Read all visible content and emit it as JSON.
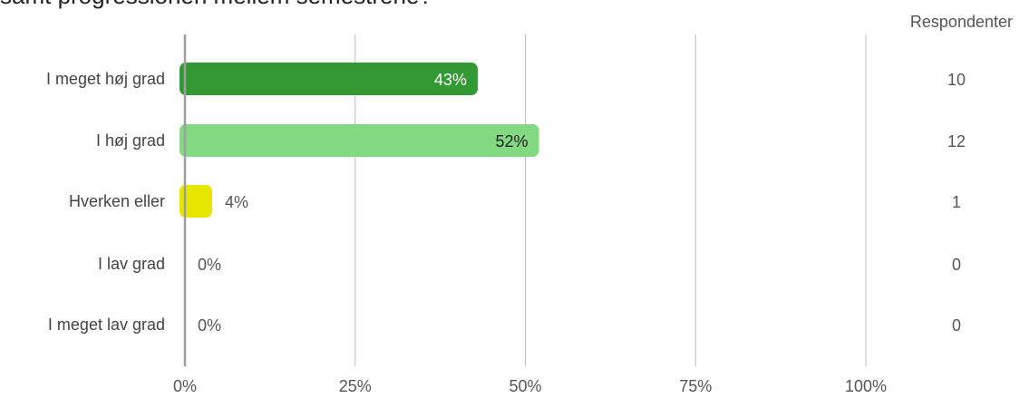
{
  "title": "samt progressionen mellem semestrene?",
  "respondents_header": "Respondenter",
  "chart_data": {
    "type": "bar",
    "orientation": "horizontal",
    "categories": [
      "I meget høj grad",
      "I høj grad",
      "Hverken eller",
      "I lav grad",
      "I meget lav grad"
    ],
    "values": [
      43,
      52,
      4,
      0,
      0
    ],
    "value_labels": [
      "43%",
      "52%",
      "4%",
      "0%",
      "0%"
    ],
    "respondents": [
      10,
      12,
      1,
      0,
      0
    ],
    "colors": [
      "#339933",
      "#82d982",
      "#e6e600",
      "#cccccc",
      "#cccccc"
    ],
    "label_colors": [
      "#ffffff",
      "#222222",
      "#555555",
      "#555555",
      "#555555"
    ],
    "xlim": [
      0,
      100
    ],
    "xticks": [
      "0%",
      "25%",
      "50%",
      "75%",
      "100%"
    ],
    "grid": true
  }
}
